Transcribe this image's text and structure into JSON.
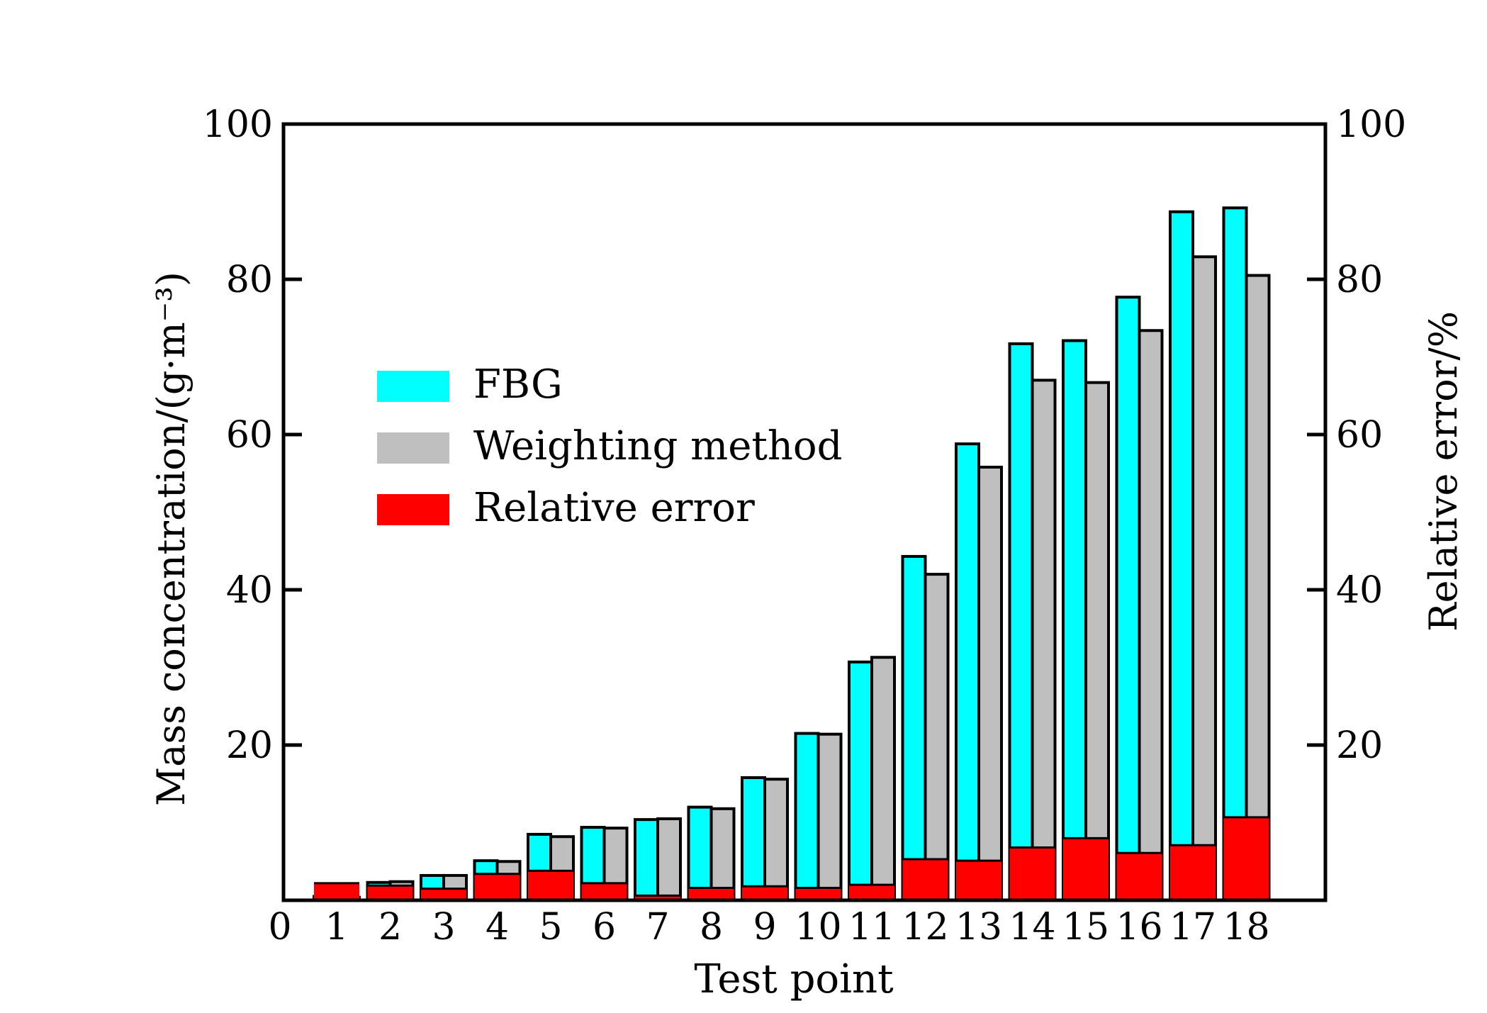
{
  "chart_data": {
    "type": "bar",
    "title": "",
    "xlabel": "Test point",
    "ylabel": "Mass concentration/(g·m⁻³)",
    "y2label": "Relative error/%",
    "x_origin_label": "0",
    "categories": [
      "1",
      "2",
      "3",
      "4",
      "5",
      "6",
      "7",
      "8",
      "9",
      "10",
      "11",
      "12",
      "13",
      "14",
      "15",
      "16",
      "17",
      "18"
    ],
    "ylim": [
      0,
      100
    ],
    "y2lim": [
      0,
      100
    ],
    "yticks": [
      20,
      40,
      60,
      80,
      100
    ],
    "y2ticks": [
      20,
      40,
      60,
      80,
      100
    ],
    "grid": false,
    "legend_position": "upper-left",
    "series": [
      {
        "name": "FBG",
        "axis": "left",
        "color": "#00ffff",
        "values": [
          0.5,
          2.3,
          3.2,
          5.1,
          8.5,
          9.4,
          10.4,
          12.0,
          15.8,
          21.5,
          30.7,
          44.3,
          58.8,
          71.7,
          72.1,
          77.7,
          88.7,
          89.2
        ]
      },
      {
        "name": "Weighting method",
        "axis": "left",
        "color": "#bfbfbf",
        "values": [
          0.4,
          2.4,
          3.2,
          5.0,
          8.2,
          9.3,
          10.5,
          11.8,
          15.6,
          21.4,
          31.3,
          42.0,
          55.8,
          67.0,
          66.7,
          73.4,
          82.9,
          80.5
        ]
      },
      {
        "name": "Relative error",
        "axis": "right",
        "color": "#ff0000",
        "values": [
          2.2,
          1.9,
          1.5,
          3.4,
          3.8,
          2.2,
          0.6,
          1.6,
          1.8,
          1.6,
          2.0,
          5.3,
          5.1,
          6.8,
          8.0,
          6.1,
          7.1,
          10.7
        ]
      }
    ]
  }
}
